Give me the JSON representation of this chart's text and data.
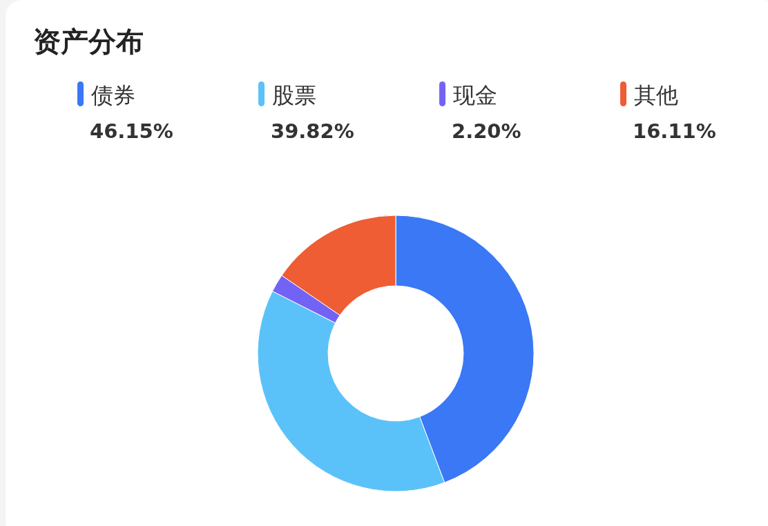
{
  "chart_data": {
    "type": "donut",
    "title": "资产分布",
    "legend": "top",
    "categories": [
      "债券",
      "股票",
      "现金",
      "其他"
    ],
    "values": [
      46.15,
      39.82,
      2.2,
      16.11
    ],
    "value_labels": [
      "46.15%",
      "39.82%",
      "2.20%",
      "16.11%"
    ],
    "colors": [
      "#3a78f5",
      "#5bc2f9",
      "#7363f5",
      "#ee5d33"
    ]
  }
}
